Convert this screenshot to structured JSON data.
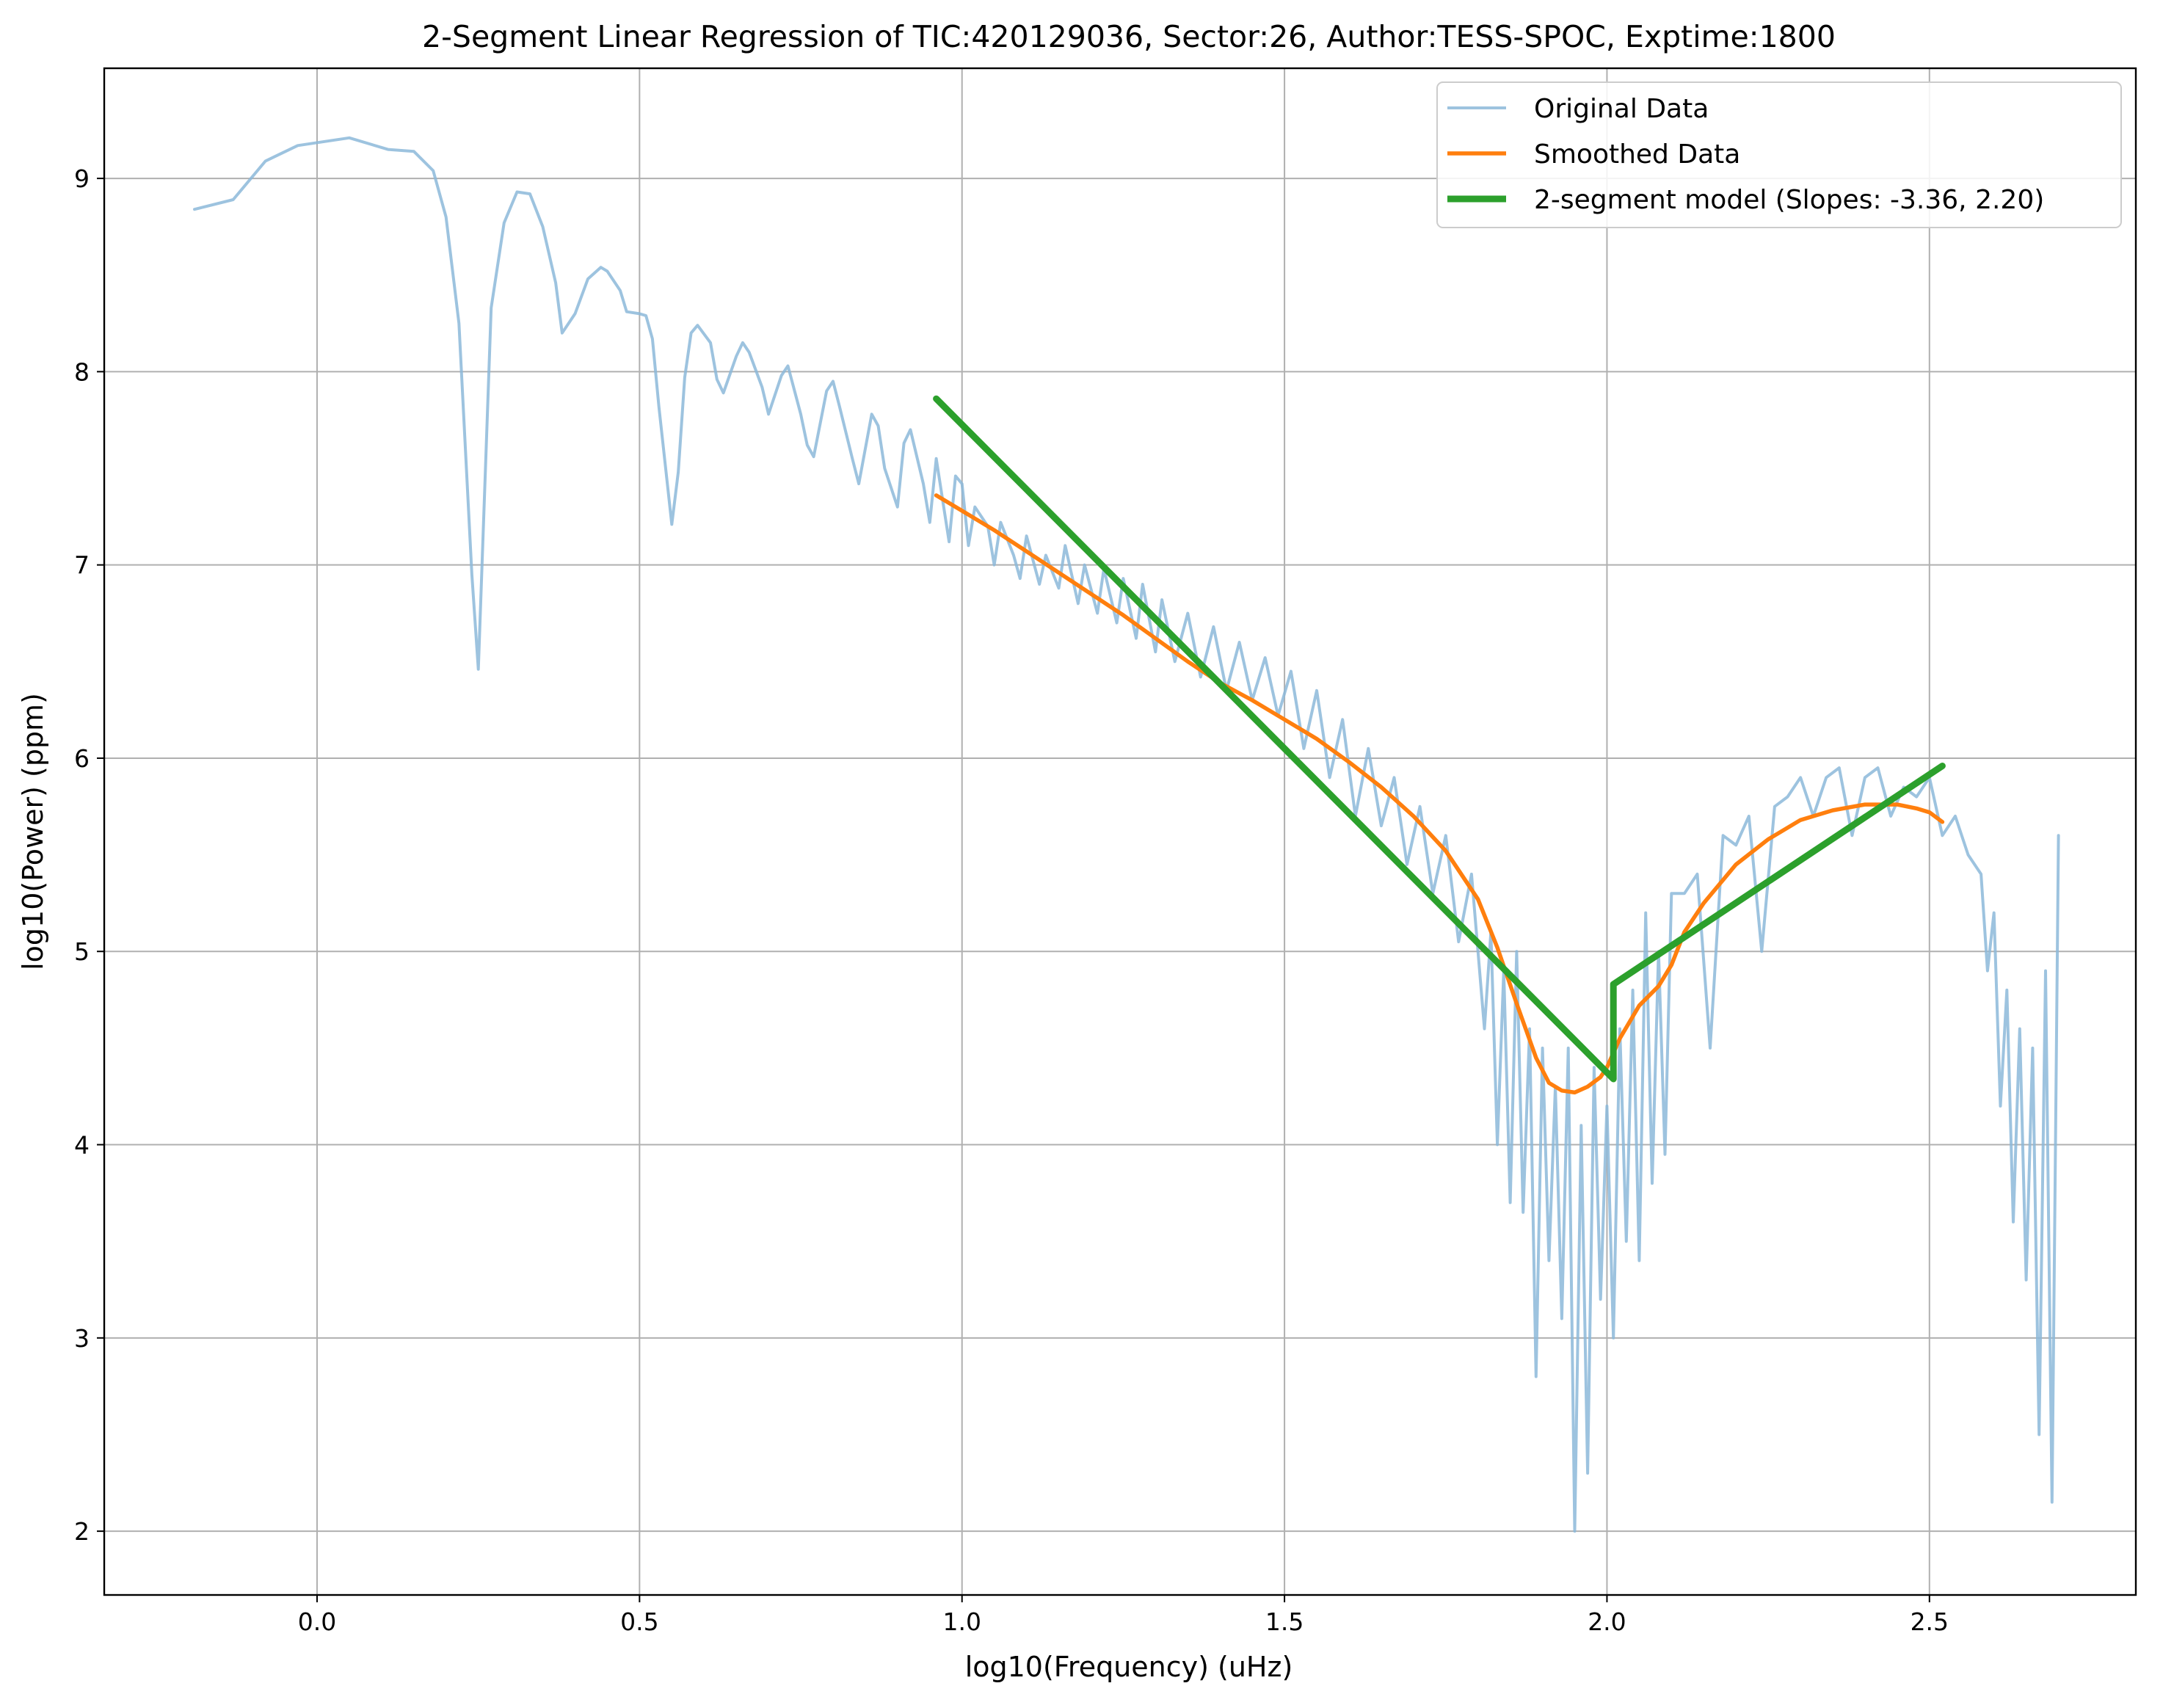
{
  "chart_data": {
    "type": "line",
    "title": "2-Segment Linear Regression of TIC:420129036, Sector:26, Author:TESS-SPOC, Exptime:1800",
    "xlabel": "log10(Frequency) (uHz)",
    "ylabel": "log10(Power) (ppm)",
    "xlim": [
      -0.33,
      2.82
    ],
    "ylim": [
      1.67,
      9.57
    ],
    "xticks": [
      "0.0",
      "0.5",
      "1.0",
      "1.5",
      "2.0",
      "2.5"
    ],
    "yticks": [
      "2",
      "3",
      "4",
      "5",
      "6",
      "7",
      "8",
      "9"
    ],
    "grid": true,
    "legend_position": "top-right",
    "series": [
      {
        "name": "Original Data",
        "color": "#8cb8d9",
        "x": [
          -0.19,
          -0.13,
          -0.08,
          -0.03,
          0.05,
          0.11,
          0.15,
          0.18,
          0.2,
          0.22,
          0.24,
          0.25,
          0.27,
          0.29,
          0.31,
          0.33,
          0.35,
          0.37,
          0.38,
          0.4,
          0.42,
          0.44,
          0.45,
          0.47,
          0.48,
          0.5,
          0.51,
          0.52,
          0.53,
          0.55,
          0.56,
          0.57,
          0.58,
          0.59,
          0.61,
          0.62,
          0.63,
          0.65,
          0.66,
          0.67,
          0.69,
          0.7,
          0.72,
          0.73,
          0.75,
          0.76,
          0.77,
          0.79,
          0.8,
          0.81,
          0.83,
          0.84,
          0.86,
          0.87,
          0.88,
          0.9,
          0.91,
          0.92,
          0.94,
          0.95,
          0.96,
          0.98,
          0.99,
          1.0,
          1.01,
          1.02,
          1.04,
          1.05,
          1.06,
          1.08,
          1.09,
          1.1,
          1.12,
          1.13,
          1.15,
          1.16,
          1.18,
          1.19,
          1.21,
          1.22,
          1.24,
          1.25,
          1.27,
          1.28,
          1.3,
          1.31,
          1.33,
          1.35,
          1.37,
          1.39,
          1.41,
          1.43,
          1.45,
          1.47,
          1.49,
          1.51,
          1.53,
          1.55,
          1.57,
          1.59,
          1.61,
          1.63,
          1.65,
          1.67,
          1.69,
          1.71,
          1.73,
          1.75,
          1.77,
          1.79,
          1.81,
          1.82,
          1.83,
          1.84,
          1.85,
          1.86,
          1.87,
          1.88,
          1.89,
          1.9,
          1.91,
          1.92,
          1.93,
          1.94,
          1.95,
          1.96,
          1.97,
          1.98,
          1.99,
          2.0,
          2.01,
          2.02,
          2.03,
          2.04,
          2.05,
          2.06,
          2.07,
          2.08,
          2.09,
          2.1,
          2.12,
          2.14,
          2.16,
          2.18,
          2.2,
          2.22,
          2.24,
          2.26,
          2.28,
          2.3,
          2.32,
          2.34,
          2.36,
          2.38,
          2.4,
          2.42,
          2.44,
          2.46,
          2.48,
          2.5,
          2.52,
          2.54,
          2.56,
          2.58,
          2.59,
          2.6,
          2.61,
          2.62,
          2.63,
          2.64,
          2.65,
          2.66,
          2.67,
          2.68,
          2.69,
          2.7
        ],
        "y": [
          8.84,
          8.89,
          9.09,
          9.17,
          9.21,
          9.15,
          9.14,
          9.04,
          8.8,
          8.25,
          6.95,
          6.46,
          8.33,
          8.77,
          8.93,
          8.92,
          8.75,
          8.46,
          8.2,
          8.3,
          8.48,
          8.54,
          8.52,
          8.42,
          8.31,
          8.3,
          8.29,
          8.17,
          7.82,
          7.21,
          7.48,
          7.97,
          8.2,
          8.24,
          8.15,
          7.96,
          7.89,
          8.08,
          8.15,
          8.1,
          7.92,
          7.78,
          7.98,
          8.03,
          7.78,
          7.62,
          7.56,
          7.9,
          7.95,
          7.82,
          7.55,
          7.42,
          7.78,
          7.72,
          7.5,
          7.3,
          7.63,
          7.7,
          7.42,
          7.22,
          7.55,
          7.12,
          7.46,
          7.42,
          7.1,
          7.3,
          7.2,
          7.0,
          7.22,
          7.05,
          6.93,
          7.15,
          6.9,
          7.05,
          6.88,
          7.1,
          6.8,
          7.0,
          6.75,
          6.98,
          6.7,
          6.93,
          6.62,
          6.9,
          6.55,
          6.82,
          6.5,
          6.75,
          6.42,
          6.68,
          6.35,
          6.6,
          6.3,
          6.52,
          6.22,
          6.45,
          6.05,
          6.35,
          5.9,
          6.2,
          5.7,
          6.05,
          5.65,
          5.9,
          5.45,
          5.75,
          5.3,
          5.6,
          5.05,
          5.4,
          4.6,
          5.1,
          4.0,
          4.9,
          3.7,
          5.0,
          3.65,
          4.6,
          2.8,
          4.5,
          3.4,
          4.3,
          3.1,
          4.5,
          2.0,
          4.1,
          2.3,
          4.4,
          3.2,
          4.2,
          3.0,
          4.6,
          3.5,
          4.8,
          3.4,
          5.2,
          3.8,
          5.0,
          3.95,
          5.3,
          5.3,
          5.4,
          4.5,
          5.6,
          5.55,
          5.7,
          5.0,
          5.75,
          5.8,
          5.9,
          5.7,
          5.9,
          5.95,
          5.6,
          5.9,
          5.95,
          5.7,
          5.85,
          5.8,
          5.9,
          5.6,
          5.7,
          5.5,
          5.4,
          4.9,
          5.2,
          4.2,
          4.8,
          3.6,
          4.6,
          3.3,
          4.5,
          2.5,
          4.9,
          2.15,
          5.6
        ],
        "opacity": 0.85
      },
      {
        "name": "Smoothed Data",
        "color": "#ff7f0e",
        "x": [
          0.96,
          1.0,
          1.05,
          1.1,
          1.15,
          1.2,
          1.25,
          1.3,
          1.35,
          1.4,
          1.45,
          1.5,
          1.55,
          1.6,
          1.65,
          1.7,
          1.75,
          1.8,
          1.83,
          1.86,
          1.89,
          1.91,
          1.93,
          1.95,
          1.97,
          1.99,
          2.0,
          2.02,
          2.05,
          2.08,
          2.1,
          2.12,
          2.15,
          2.2,
          2.25,
          2.3,
          2.35,
          2.4,
          2.45,
          2.48,
          2.5,
          2.52
        ],
        "y": [
          7.36,
          7.28,
          7.18,
          7.07,
          6.96,
          6.85,
          6.74,
          6.62,
          6.5,
          6.39,
          6.3,
          6.2,
          6.1,
          5.98,
          5.85,
          5.7,
          5.52,
          5.27,
          5.02,
          4.73,
          4.45,
          4.32,
          4.28,
          4.27,
          4.3,
          4.35,
          4.4,
          4.55,
          4.72,
          4.82,
          4.93,
          5.1,
          5.25,
          5.45,
          5.58,
          5.68,
          5.73,
          5.76,
          5.76,
          5.74,
          5.72,
          5.67
        ]
      },
      {
        "name": "2-segment model (Slopes: -3.36, 2.20)",
        "color": "#2ca02c",
        "x": [
          0.96,
          2.01,
          2.01,
          2.52
        ],
        "y": [
          7.86,
          4.34,
          4.83,
          5.96
        ]
      }
    ]
  }
}
